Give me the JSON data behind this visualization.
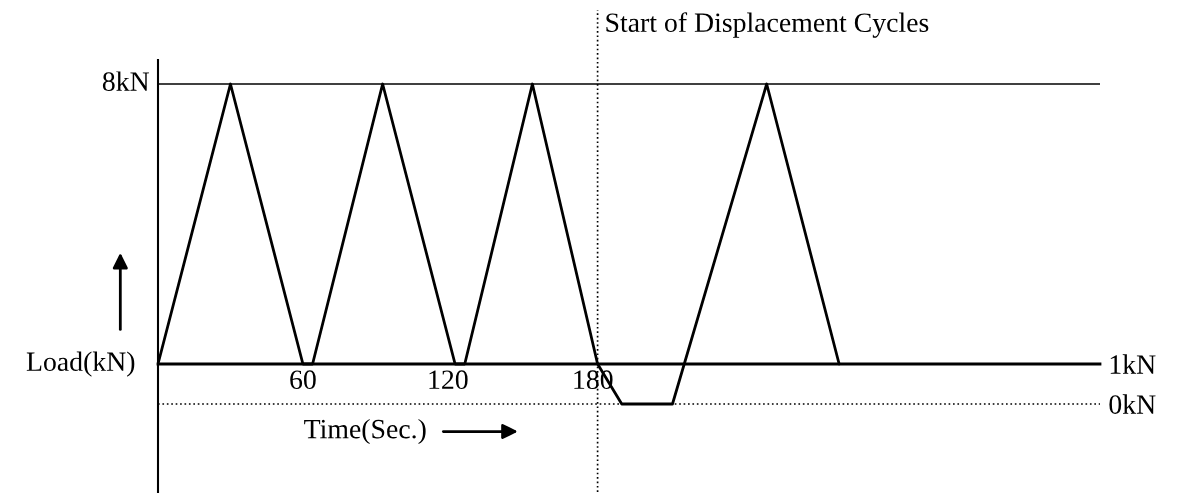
{
  "chart_data": {
    "type": "line",
    "xlabel": "Time(Sec.)",
    "ylabel": "Load(kN)",
    "x": [
      0,
      30,
      60,
      64,
      93,
      123,
      127,
      155,
      182,
      192,
      213,
      252,
      282
    ],
    "series": [
      {
        "color": "#000000",
        "values": [
          1,
          8,
          1,
          1,
          8,
          1,
          1,
          8,
          1,
          0,
          0,
          8,
          1
        ]
      }
    ],
    "line_style": "solid",
    "xlim": [
      0,
      390
    ],
    "xticks": [
      60,
      120,
      180
    ],
    "ylim": [
      -2.2,
      8.6
    ],
    "yticks": [
      {
        "value": 1,
        "label": "1kN"
      },
      {
        "value": 0,
        "label": "0kN"
      }
    ],
    "ref_lines": [
      {
        "axis": "y",
        "value": 8,
        "label": "8kN",
        "line_style": "solid"
      },
      {
        "axis": "y",
        "value": 0,
        "line_style": "dotted"
      },
      {
        "axis": "x",
        "value": 182,
        "label": "Start of Displacement Cycles",
        "line_style": "dotted"
      }
    ]
  }
}
